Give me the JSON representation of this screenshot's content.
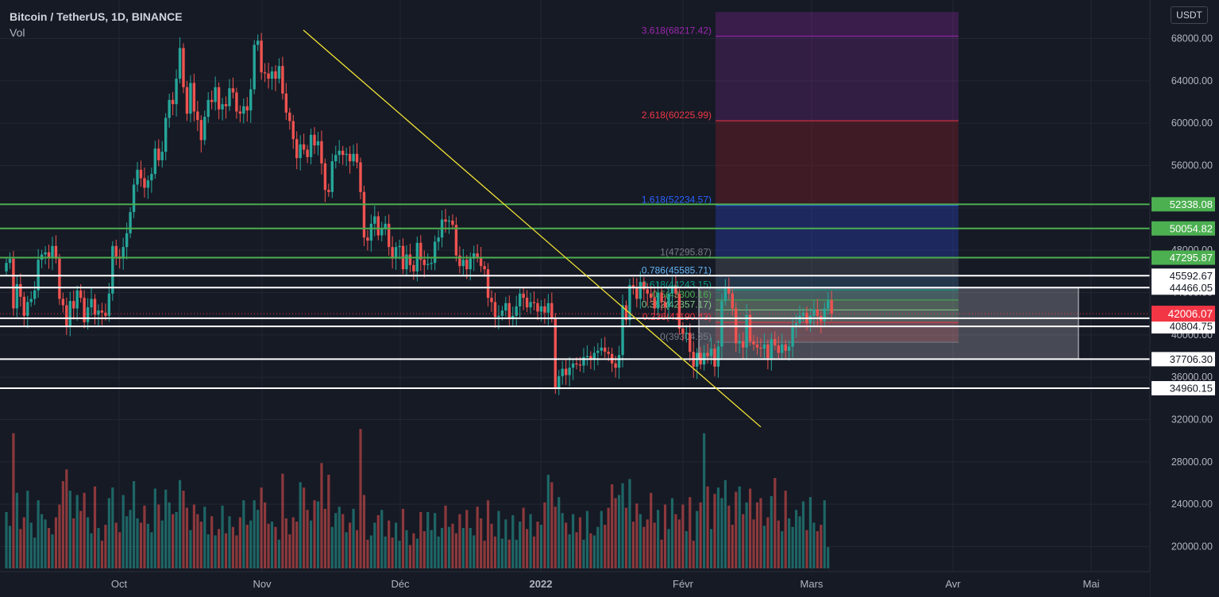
{
  "header": {
    "symbol": "Bitcoin / TetherUS, 1D, BINANCE",
    "volume_label": "Vol"
  },
  "currency_button": "USDT",
  "colors": {
    "background": "#161a25",
    "bull": "#26a69a",
    "bear": "#ef5350",
    "trendline": "#f2e434",
    "level_green": "#4caf50",
    "level_white": "#ffffff",
    "axis_text": "#b2b5be",
    "price_tag": "#f23645"
  },
  "chart_data": {
    "type": "candlestick",
    "title": "Bitcoin / TetherUS, 1D, BINANCE",
    "x_axis": {
      "ticks": [
        "Oct",
        "Nov",
        "Déc",
        "2022",
        "Févr",
        "Mars",
        "Avr",
        "Mai"
      ]
    },
    "y_axis": {
      "ticks": [
        68000,
        64000,
        60000,
        56000,
        52000,
        48000,
        44000,
        40000,
        36000,
        32000,
        28000,
        24000,
        20000
      ],
      "range": [
        17500,
        70500
      ]
    },
    "candles_close": [
      46800,
      47200,
      42500,
      44800,
      43600,
      41800,
      43100,
      43400,
      44200,
      47100,
      47600,
      47800,
      47300,
      48400,
      47200,
      43400,
      42800,
      40800,
      43200,
      42500,
      44200,
      43500,
      41200,
      42600,
      43400,
      41900,
      42300,
      42100,
      41800,
      43900,
      48400,
      47400,
      47200,
      48300,
      49600,
      51600,
      54200,
      55600,
      54800,
      53900,
      54600,
      55200,
      57600,
      56500,
      57300,
      60500,
      62200,
      61800,
      64200,
      67100,
      63400,
      60900,
      63800,
      61100,
      60300,
      58400,
      60600,
      62200,
      62000,
      63400,
      61300,
      61800,
      61600,
      63300,
      62900,
      61100,
      60900,
      61600,
      61200,
      63200,
      67400,
      67800,
      64800,
      64700,
      64200,
      64900,
      64200,
      65400,
      62800,
      61000,
      60200,
      58500,
      56700,
      58000,
      57500,
      56800,
      58900,
      57900,
      58300,
      56200,
      53700,
      53500,
      56400,
      57000,
      57400,
      57000,
      57100,
      56400,
      57100,
      56300,
      53500,
      49200,
      48900,
      50500,
      51200,
      49400,
      50100,
      50500,
      48300,
      47200,
      48300,
      48400,
      46200,
      47600,
      46600,
      46000,
      48700,
      47100,
      46600,
      46700,
      46800,
      48800,
      49200,
      50900,
      50700,
      50800,
      50400,
      47500,
      46500,
      47100,
      46200,
      47200,
      47700,
      47300,
      46500,
      46200,
      43500,
      43100,
      41700,
      41800,
      42300,
      43000,
      41600,
      41800,
      42700,
      43900,
      43500,
      42600,
      43100,
      43000,
      42200,
      42700,
      42100,
      43000,
      41600,
      35000,
      36100,
      36800,
      36200,
      36900,
      37300,
      37200,
      37100,
      37900,
      38000,
      37700,
      38300,
      38500,
      38800,
      38400,
      38200,
      37300,
      36900,
      38100,
      42800,
      41400,
      44700,
      44500,
      43400,
      45000,
      44300,
      43900,
      43500,
      42500,
      44000,
      43100,
      42600,
      43900,
      44600,
      43900,
      40600,
      40100,
      40200,
      38400,
      37000,
      38300,
      37200,
      38300,
      38000,
      38700,
      37000,
      38900,
      43200,
      44400,
      43900,
      42500,
      39200,
      39400,
      38800,
      41900,
      39400,
      39100,
      38800,
      38700,
      39100,
      37800,
      39600,
      39000,
      38300,
      39100,
      38500,
      38900,
      40900,
      41100,
      41800,
      42100,
      41100,
      41800,
      42400,
      41800,
      41300,
      42500,
      43300,
      42006
    ],
    "volume": [
      22800,
      21500,
      30200,
      24600,
      21200,
      22300,
      24800,
      21800,
      20400,
      23900,
      22600,
      22100,
      21300,
      20700,
      22300,
      23500,
      25700,
      26800,
      24800,
      22200,
      24400,
      22900,
      24600,
      22300,
      20800,
      25200,
      21300,
      20100,
      21600,
      24100,
      25100,
      21800,
      20900,
      24400,
      22400,
      23000,
      25700,
      22200,
      21800,
      23400,
      21700,
      20900,
      25000,
      23500,
      22000,
      24900,
      23700,
      22600,
      22800,
      25800,
      24800,
      23200,
      21100,
      23500,
      22600,
      21900,
      23300,
      20700,
      22400,
      20600,
      21200,
      23400,
      20800,
      22400,
      21400,
      20600,
      22300,
      23900,
      21600,
      22000,
      23900,
      23000,
      25100,
      23700,
      21700,
      21900,
      21400,
      20200,
      26400,
      22200,
      20700,
      22300,
      21900,
      25600,
      25100,
      23000,
      22000,
      23900,
      23800,
      27400,
      23100,
      26300,
      21400,
      22700,
      23300,
      22600,
      20900,
      21800,
      23100,
      21100,
      30600,
      24400,
      20200,
      20600,
      21800,
      22500,
      23000,
      20500,
      22000,
      20400,
      21800,
      20100,
      23100,
      21100,
      19700,
      20800,
      20300,
      22800,
      21000,
      22800,
      21100,
      22700,
      20500,
      21300,
      23400,
      21400,
      21700,
      20800,
      22600,
      21300,
      23000,
      21300,
      20600,
      23300,
      22200,
      20100,
      23900,
      21700,
      20500,
      22900,
      20300,
      22100,
      20200,
      22500,
      20200,
      21900,
      23200,
      21200,
      22600,
      20500,
      21900,
      21600,
      23700,
      26300,
      25600,
      23300,
      24200,
      22700,
      21800,
      20700,
      22600,
      20900,
      22300,
      20200,
      22900,
      20800,
      20600,
      21400,
      22900,
      21600,
      23200,
      25400,
      24100,
      24400,
      25500,
      23200,
      25900,
      21900,
      23600,
      22600,
      21400,
      22100,
      24600,
      21800,
      23000,
      20200,
      23500,
      21200,
      24100,
      22600,
      22100,
      23500,
      21000,
      24200,
      20100,
      22900,
      23700,
      30200,
      25200,
      21200,
      24500,
      25100,
      24100,
      25800,
      23400,
      21600,
      24700,
      25200,
      22600,
      23700,
      25000,
      22100,
      23700,
      24100,
      21500,
      22300,
      24300,
      26000,
      22000,
      21000,
      24800,
      22200,
      21400,
      23000,
      22400,
      23800,
      21100,
      24200,
      21800,
      21000,
      21600,
      23900,
      19500
    ],
    "volume_max_label": "",
    "horizontal_levels": [
      {
        "value": 52338.08,
        "label": "52338.08",
        "color": "#4caf50"
      },
      {
        "value": 50054.82,
        "label": "50054.82",
        "color": "#4caf50"
      },
      {
        "value": 47295.87,
        "label": "47295.87",
        "color": "#4caf50"
      },
      {
        "value": 45592.67,
        "label": "45592.67",
        "color": "#ffffff"
      },
      {
        "value": 44466.05,
        "label": "44466.05",
        "color": "#ffffff"
      },
      {
        "value": 41570.91,
        "label": "41570.91",
        "color": "#ffffff"
      },
      {
        "value": 40804.75,
        "label": "40804.75",
        "color": "#ffffff"
      },
      {
        "value": 37706.3,
        "label": "37706.30",
        "color": "#ffffff"
      },
      {
        "value": 34960.15,
        "label": "34960.15",
        "color": "#ffffff"
      }
    ],
    "last_price": {
      "value": 42006.07,
      "label": "42006.07"
    },
    "fib_extension": [
      {
        "ratio": "3.618",
        "value": 68217.42,
        "label": "3.618(68217.42)",
        "color": "#9c27b0"
      },
      {
        "ratio": "2.618",
        "value": 60225.99,
        "label": "2.618(60225.99)",
        "color": "#f23645"
      },
      {
        "ratio": "1.618",
        "value": 52234.57,
        "label": "1.618(52234.57)",
        "color": "#2962ff"
      },
      {
        "ratio": "1",
        "value": 47295.87,
        "label": "1(47295.87)",
        "color": "#787b86"
      },
      {
        "ratio": "0.786",
        "value": 45585.71,
        "label": "0.786(45585.71)",
        "color": "#64b5f6"
      },
      {
        "ratio": "0.618",
        "value": 44243.15,
        "label": "0.618(44243.15)",
        "color": "#089981"
      },
      {
        "ratio": "0.5",
        "value": 43300.16,
        "label": "0.5(43300.16)",
        "color": "#4caf50"
      },
      {
        "ratio": "0.382",
        "value": 42357.17,
        "label": "0.382(42357.17)",
        "color": "#81c784"
      },
      {
        "ratio": "0.236",
        "value": 41190.43,
        "label": "0.236(41190.43)",
        "color": "#f23645"
      },
      {
        "ratio": "0",
        "value": 39304.35,
        "label": "0(39304.35)",
        "color": "#787b86"
      }
    ],
    "range_box": {
      "top": 44466.05,
      "bottom": 37706.3
    },
    "trendline": {
      "from_price": 68800,
      "to_price": 31300
    }
  }
}
